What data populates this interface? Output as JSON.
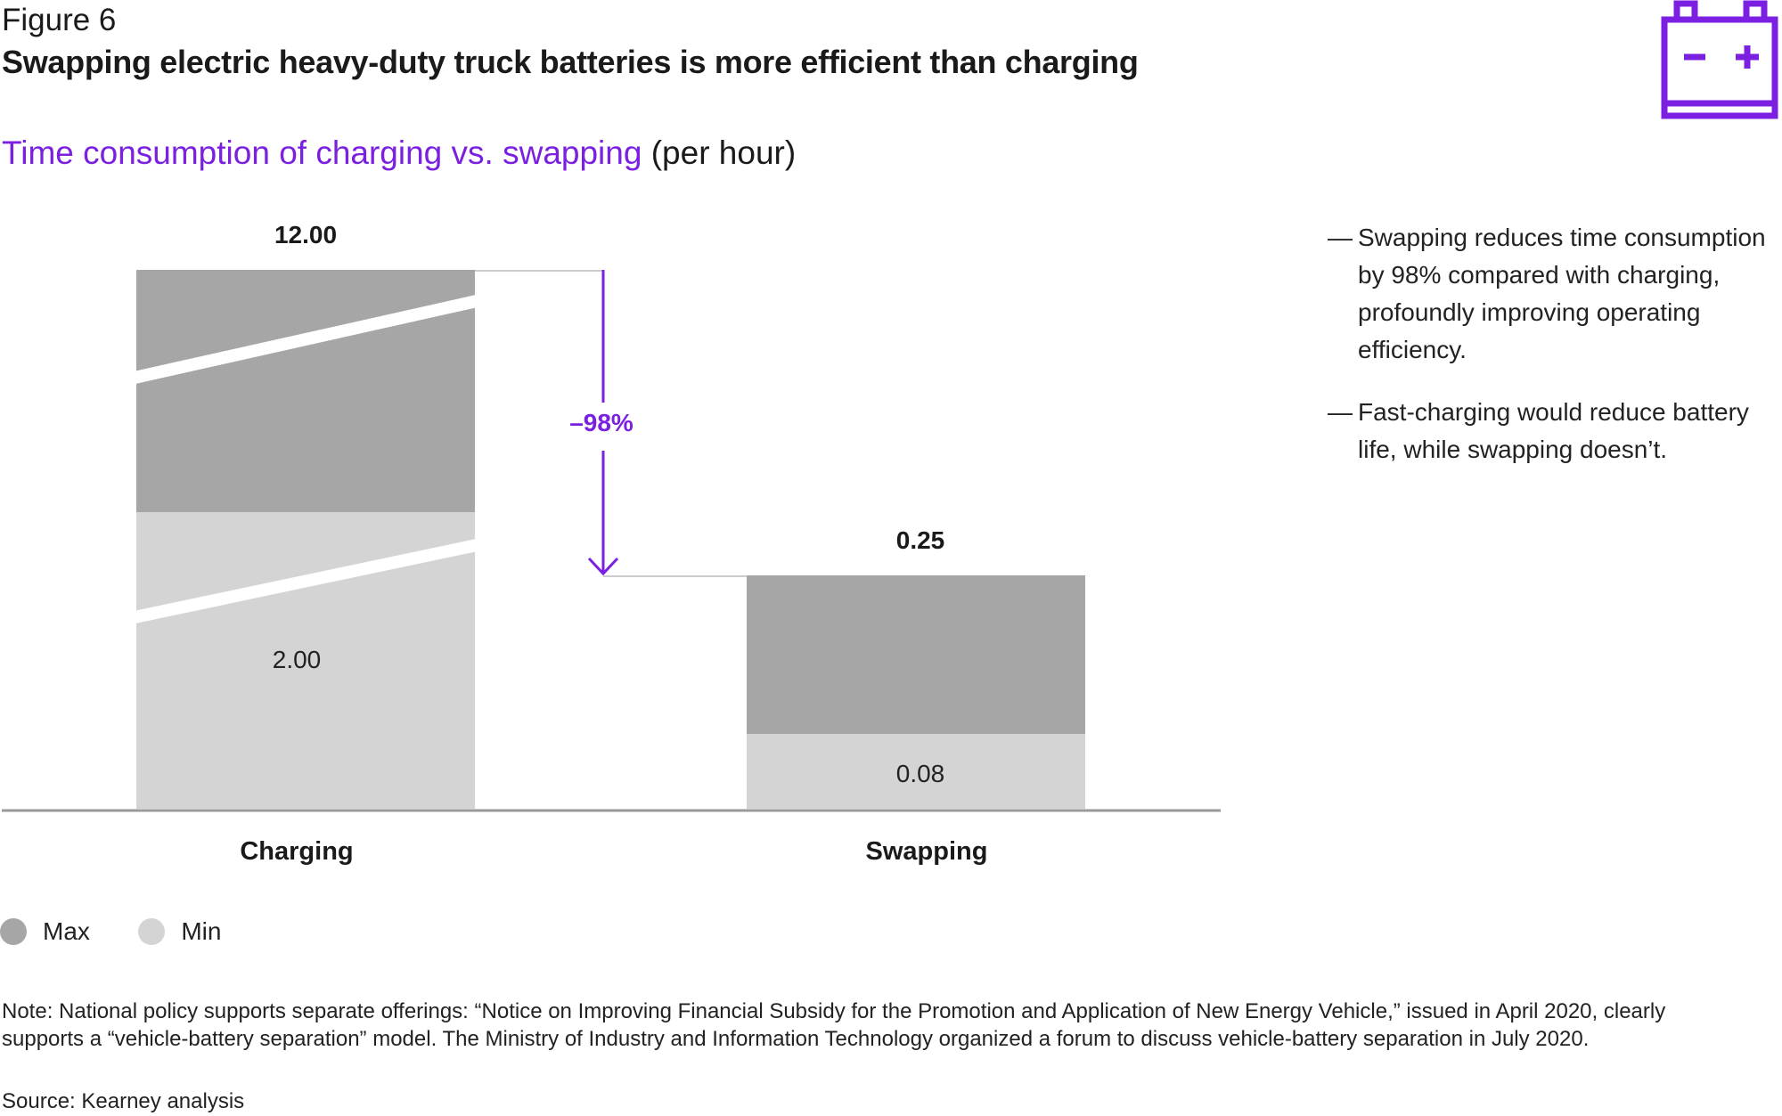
{
  "figure_label": "Figure 6",
  "title": "Swapping electric heavy-duty truck batteries is more efficient than charging",
  "subtitle": {
    "accent": "Time consumption of charging vs. swapping",
    "rest": " (per hour)"
  },
  "bullets": [
    "Swapping reduces time consumption by 98% compared with charging, profoundly improving operating efficiency.",
    "Fast-charging would reduce battery life, while swapping doesn’t."
  ],
  "bullet_dash": "—",
  "legend": [
    {
      "label": "Max",
      "color": "#A6A6A6"
    },
    {
      "label": "Min",
      "color": "#D4D4D4"
    }
  ],
  "note": "Note: National policy supports separate offerings: “Notice on Improving Financial Subsidy for the Promotion and Application of New Energy Vehicle,” issued in April 2020, clearly supports a “vehicle-battery separation” model. The Ministry of Industry and Information Technology organized a forum to discuss vehicle-battery separation in July 2020.",
  "source": "Source: Kearney analysis",
  "icon": "battery-icon",
  "colors": {
    "accent": "#7B1FE0",
    "max": "#A6A6A6",
    "min": "#D4D4D4",
    "axis": "#999999"
  },
  "chart_data": {
    "type": "bar",
    "categories": [
      "Charging",
      "Swapping"
    ],
    "series": [
      {
        "name": "Max",
        "values": [
          12.0,
          0.25
        ]
      },
      {
        "name": "Min",
        "values": [
          2.0,
          0.08
        ]
      }
    ],
    "value_labels": {
      "max": [
        "12.00",
        "0.25"
      ],
      "min": [
        "2.00",
        "0.08"
      ]
    },
    "axis_break": [
      true,
      false
    ],
    "change_label": "–98%",
    "xlabel": "",
    "ylabel": "",
    "grid": false,
    "legend_position": "bottom-left"
  }
}
